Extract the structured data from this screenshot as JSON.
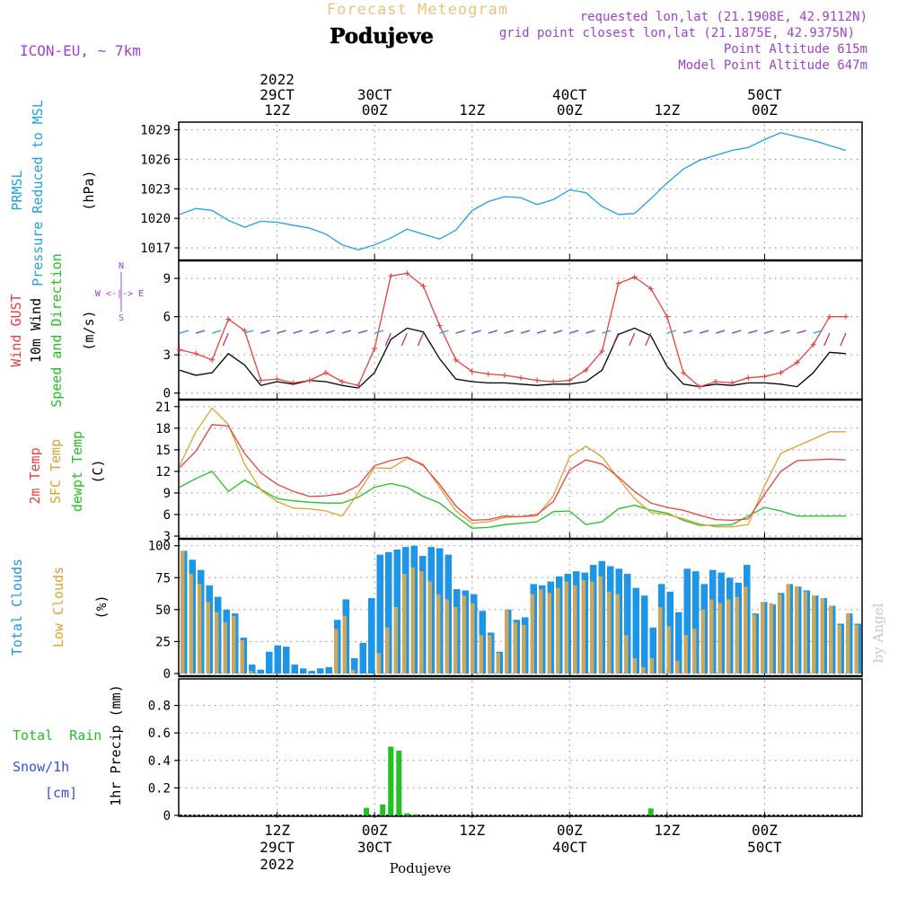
{
  "header": {
    "subtitle": "Forecast Meteogram",
    "place": "Podujeve",
    "model": "ICON-EU, ~ 7km",
    "requested": "requested lon,lat (21.1908E, 42.9112N)",
    "grid": "grid point closest lon,lat (21.1875E, 42.9375N)",
    "point_alt": "Point Altitude 615m",
    "model_alt": "Model Point Altitude 647m",
    "footer": "Podujeve",
    "credit": "by Angel"
  },
  "time_axis": {
    "top_labels": [
      {
        "t": 12,
        "lines": [
          "2022",
          "29CT",
          "12Z"
        ]
      },
      {
        "t": 24,
        "lines": [
          "30CT",
          "00Z"
        ]
      },
      {
        "t": 36,
        "lines": [
          "12Z"
        ]
      },
      {
        "t": 48,
        "lines": [
          "40CT",
          "00Z"
        ]
      },
      {
        "t": 60,
        "lines": [
          "12Z"
        ]
      },
      {
        "t": 72,
        "lines": [
          "50CT",
          "00Z"
        ]
      }
    ],
    "bottom_labels": [
      {
        "t": 12,
        "lines": [
          "12Z",
          "29CT",
          "2022"
        ]
      },
      {
        "t": 24,
        "lines": [
          "00Z",
          "30CT"
        ]
      },
      {
        "t": 36,
        "lines": [
          "12Z"
        ]
      },
      {
        "t": 48,
        "lines": [
          "00Z",
          "40CT"
        ]
      },
      {
        "t": 60,
        "lines": [
          "12Z"
        ]
      },
      {
        "t": 72,
        "lines": [
          "00Z",
          "50CT"
        ]
      }
    ]
  },
  "panel_labels": {
    "pressure": {
      "l1": "PRMSL",
      "l2": "Pressure Reduced to MSL",
      "unit": "(hPa)"
    },
    "wind": {
      "l1": "Wind GUST",
      "l2": "10m Wind",
      "l3": "Speed and Direction",
      "unit": "(m/s)",
      "compass_n": "N",
      "compass_s": "S",
      "compass_we": "W <-|-> E"
    },
    "temp": {
      "l1": "2m Temp",
      "l2": "SFC Temp",
      "l3": "dewpt Temp",
      "unit": "(C)"
    },
    "clouds": {
      "l1": "Total Clouds",
      "l2": "Low Clouds",
      "unit": "(%)"
    },
    "precip": {
      "l1": "Total  Rain",
      "l2": "Snow/1h",
      "l3": "[cm]",
      "unit": "1hr Precip (mm)"
    }
  },
  "colors": {
    "pressure": "#1fa0e6",
    "gust": "#e84040",
    "wind": "#000000",
    "t2m": "#e84040",
    "sfc": "#e0a030",
    "dew": "#22c022",
    "total_clouds": "#1e96e8",
    "low_clouds": "#c8a860",
    "rain": "#22c022",
    "purple": "#a040d0",
    "orange": "#f0c080"
  },
  "chart_data": [
    {
      "type": "line",
      "title": "PRMSL Pressure Reduced to MSL",
      "ylabel": "(hPa)",
      "ylim": [
        1016,
        1029.5
      ],
      "yticks": [
        1017,
        1020,
        1023,
        1026,
        1029
      ],
      "x_hours": [
        0,
        2,
        4,
        6,
        8,
        10,
        12,
        14,
        16,
        18,
        20,
        22,
        24,
        26,
        28,
        30,
        32,
        34,
        36,
        38,
        40,
        42,
        44,
        46,
        48,
        50,
        52,
        54,
        56,
        58,
        60,
        62,
        64,
        66,
        68,
        70,
        72,
        74,
        76,
        78,
        80,
        82
      ],
      "series": [
        {
          "name": "PRMSL",
          "values": [
            1020.4,
            1021.0,
            1020.8,
            1019.8,
            1019.1,
            1019.7,
            1019.6,
            1019.3,
            1019.0,
            1018.4,
            1017.3,
            1016.8,
            1017.3,
            1018.0,
            1018.9,
            1018.4,
            1017.9,
            1018.8,
            1020.8,
            1021.7,
            1022.2,
            1022.1,
            1021.4,
            1021.9,
            1022.9,
            1022.6,
            1021.2,
            1020.4,
            1020.5,
            1022.0,
            1023.6,
            1025.0,
            1025.9,
            1026.4,
            1026.9,
            1027.2,
            1028.0,
            1028.7,
            1028.3,
            1027.9,
            1027.4,
            1026.9
          ]
        }
      ]
    },
    {
      "type": "line",
      "title": "Wind GUST / 10m Wind Speed and Direction",
      "ylabel": "(m/s)",
      "ylim": [
        -0.3,
        10.2
      ],
      "yticks": [
        0,
        3,
        6,
        9
      ],
      "x_hours": [
        0,
        2,
        4,
        6,
        8,
        10,
        12,
        14,
        16,
        18,
        20,
        22,
        24,
        26,
        28,
        30,
        32,
        34,
        36,
        38,
        40,
        42,
        44,
        46,
        48,
        50,
        52,
        54,
        56,
        58,
        60,
        62,
        64,
        66,
        68,
        70,
        72,
        74,
        76,
        78,
        80,
        82
      ],
      "series": [
        {
          "name": "Wind GUST",
          "values": [
            3.4,
            3.1,
            2.6,
            5.8,
            4.9,
            1.0,
            1.1,
            0.8,
            1.0,
            1.6,
            0.9,
            0.6,
            3.5,
            9.2,
            9.4,
            8.4,
            5.3,
            2.6,
            1.7,
            1.5,
            1.4,
            1.2,
            1.0,
            0.9,
            1.0,
            1.8,
            3.3,
            8.6,
            9.1,
            8.2,
            6.0,
            1.6,
            0.5,
            0.9,
            0.8,
            1.2,
            1.3,
            1.6,
            2.4,
            3.8,
            6.0,
            6.0
          ]
        },
        {
          "name": "10m Wind",
          "values": [
            1.8,
            1.4,
            1.6,
            3.1,
            2.2,
            0.6,
            0.9,
            0.7,
            1.0,
            0.9,
            0.6,
            0.4,
            1.6,
            4.2,
            5.1,
            4.8,
            2.7,
            1.1,
            0.9,
            0.8,
            0.8,
            0.7,
            0.6,
            0.7,
            0.7,
            0.9,
            1.8,
            4.6,
            5.1,
            4.5,
            2.1,
            0.7,
            0.5,
            0.7,
            0.6,
            0.8,
            0.8,
            0.7,
            0.5,
            1.6,
            3.2,
            3.1
          ]
        }
      ]
    },
    {
      "type": "line",
      "title": "2m Temp / SFC Temp / dewpt Temp",
      "ylabel": "(C)",
      "ylim": [
        3,
        21.6
      ],
      "yticks": [
        3,
        6,
        9,
        12,
        15,
        18,
        21
      ],
      "x_hours": [
        0,
        2,
        4,
        6,
        8,
        10,
        12,
        14,
        16,
        18,
        20,
        22,
        24,
        26,
        28,
        30,
        32,
        34,
        36,
        38,
        40,
        42,
        44,
        46,
        48,
        50,
        52,
        54,
        56,
        58,
        60,
        62,
        64,
        66,
        68,
        70,
        72,
        74,
        76,
        78,
        80,
        82
      ],
      "series": [
        {
          "name": "2m Temp",
          "values": [
            12.5,
            14.8,
            18.5,
            18.3,
            14.5,
            11.8,
            10.2,
            9.2,
            8.5,
            8.6,
            8.9,
            10.0,
            12.8,
            13.5,
            14.0,
            12.8,
            10.2,
            7.2,
            5.2,
            5.3,
            5.8,
            5.7,
            6.0,
            7.8,
            12.2,
            13.6,
            13.0,
            11.2,
            9.2,
            7.6,
            7.0,
            6.6,
            5.9,
            5.3,
            5.2,
            5.4,
            8.8,
            12.0,
            13.5,
            13.6,
            13.7,
            13.6
          ]
        },
        {
          "name": "SFC Temp",
          "values": [
            12.8,
            17.5,
            20.8,
            18.5,
            13.0,
            9.4,
            7.8,
            6.9,
            6.8,
            6.5,
            5.8,
            9.0,
            12.5,
            12.4,
            13.8,
            13.0,
            9.8,
            6.5,
            4.8,
            5.0,
            5.6,
            5.7,
            5.8,
            8.6,
            14.0,
            15.5,
            14.0,
            11.0,
            8.2,
            6.3,
            6.0,
            5.4,
            4.7,
            4.3,
            4.3,
            4.6,
            10.0,
            14.5,
            15.5,
            16.5,
            17.5,
            17.5
          ]
        },
        {
          "name": "dewpt Temp",
          "values": [
            9.8,
            11.0,
            12.0,
            9.2,
            10.8,
            9.5,
            8.2,
            7.9,
            7.7,
            7.6,
            7.6,
            8.4,
            9.8,
            10.3,
            9.8,
            8.5,
            7.6,
            5.8,
            4.1,
            4.2,
            4.6,
            4.8,
            5.0,
            6.4,
            6.5,
            4.6,
            5.0,
            6.8,
            7.3,
            6.6,
            6.2,
            5.2,
            4.5,
            4.5,
            4.6,
            5.8,
            7.0,
            6.5,
            5.8,
            5.8,
            5.8,
            5.8
          ]
        }
      ]
    },
    {
      "type": "bar",
      "title": "Total Clouds / Low Clouds",
      "ylabel": "(%)",
      "ylim": [
        0,
        104
      ],
      "yticks": [
        0,
        25,
        50,
        75,
        100
      ],
      "series": [
        {
          "name": "Total Clouds",
          "values": [
            96,
            89,
            81,
            69,
            60,
            50,
            47,
            28,
            7,
            3,
            17,
            22,
            21,
            7,
            4,
            2,
            4,
            5,
            42,
            58,
            12,
            24,
            59,
            93,
            95,
            97,
            99,
            100,
            92,
            99,
            98,
            93,
            66,
            65,
            62,
            49,
            32,
            17,
            50,
            42,
            44,
            70,
            69,
            72,
            76,
            78,
            80,
            79,
            85,
            88,
            84,
            82,
            78,
            67,
            61,
            36,
            70,
            64,
            48,
            82,
            80,
            70,
            81,
            79,
            75,
            71,
            85,
            47,
            56,
            54,
            63,
            70,
            68,
            65,
            61,
            59,
            53,
            39,
            47,
            39
          ]
        },
        {
          "name": "Low Clouds",
          "values": [
            96,
            78,
            70,
            56,
            48,
            40,
            45,
            26,
            2,
            0,
            0,
            0,
            0,
            0,
            0,
            0,
            0,
            0,
            35,
            45,
            3,
            0,
            0,
            16,
            36,
            52,
            78,
            83,
            80,
            72,
            62,
            58,
            52,
            61,
            55,
            30,
            30,
            16,
            50,
            40,
            38,
            62,
            66,
            63,
            67,
            72,
            69,
            73,
            72,
            76,
            64,
            62,
            30,
            12,
            5,
            12,
            52,
            37,
            10,
            30,
            35,
            50,
            58,
            55,
            58,
            60,
            68,
            46,
            56,
            55,
            62,
            70,
            68,
            64,
            61,
            59,
            53,
            38,
            47,
            38
          ]
        }
      ]
    },
    {
      "type": "bar",
      "title": "Total Rain / Snow/1h",
      "ylabel": "1hr Precip (mm)",
      "ylim": [
        0,
        0.98
      ],
      "yticks": [
        0,
        0.2,
        0.4,
        0.6,
        0.8
      ],
      "series": [
        {
          "name": "Total Rain",
          "bars": [
            {
              "t": 23,
              "v": 0.055
            },
            {
              "t": 25,
              "v": 0.08
            },
            {
              "t": 26,
              "v": 0.5
            },
            {
              "t": 27,
              "v": 0.47
            },
            {
              "t": 28,
              "v": 0.015
            },
            {
              "t": 29,
              "v": 0.008
            },
            {
              "t": 44,
              "v": 0.005
            },
            {
              "t": 58,
              "v": 0.05
            }
          ]
        }
      ]
    }
  ]
}
